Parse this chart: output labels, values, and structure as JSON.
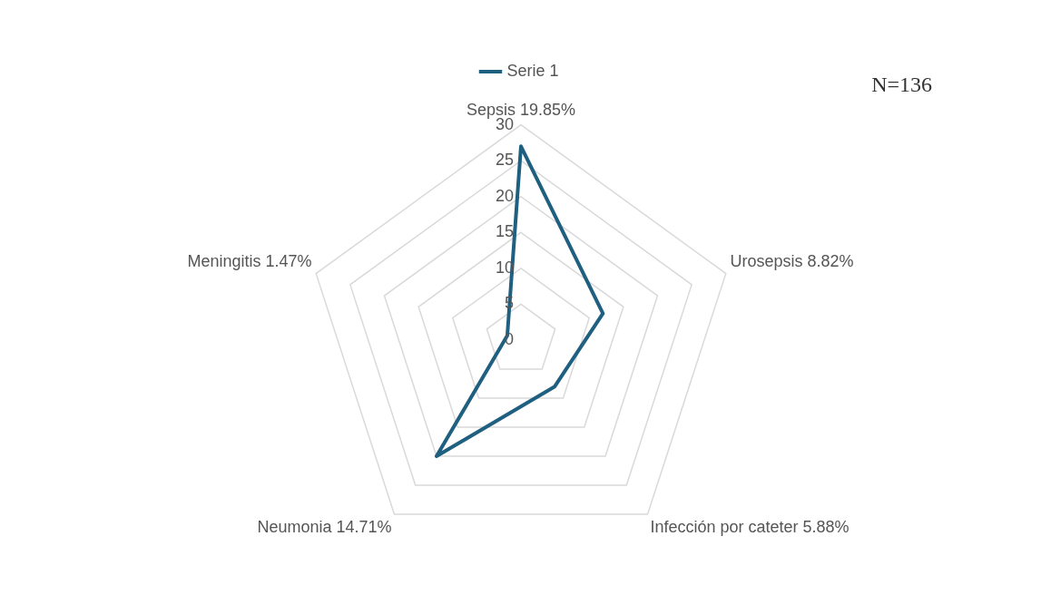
{
  "chart_data": {
    "type": "radar",
    "categories": [
      "Sepsis 19.85%",
      "Urosepsis 8.82%",
      "Infección por cateter 5.88%",
      "Neumonia 14.71%",
      "Meningitis 1.47%"
    ],
    "series": [
      {
        "name": "Serie 1",
        "color": "#1f5f80",
        "values": [
          27,
          12,
          8,
          20,
          2
        ]
      }
    ],
    "ylim": [
      0,
      30
    ],
    "yticks": [
      0,
      5,
      10,
      15,
      20,
      25,
      30
    ],
    "grid": true,
    "legend": "top",
    "marker": "none",
    "annotations": [
      "N=136"
    ]
  }
}
